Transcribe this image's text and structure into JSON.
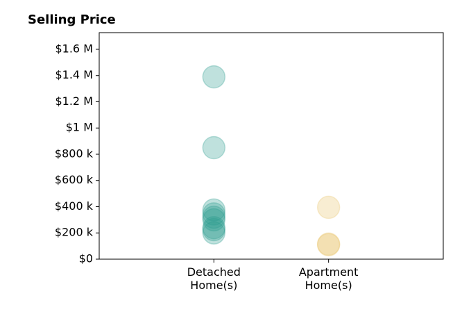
{
  "chart_data": {
    "type": "strip",
    "title": "Selling Price",
    "categories": [
      "Detached Home(s)",
      "Apartment Home(s)"
    ],
    "values": [
      [
        1390000,
        850000,
        375000,
        345000,
        320000,
        300000,
        240000,
        225000,
        200000
      ],
      [
        395000,
        115000,
        110000
      ]
    ],
    "colors": [
      "#2a9d8f",
      "#e9c46a"
    ],
    "ylim": [
      0,
      1727000
    ],
    "yticks": [
      {
        "value": 0,
        "label": "$0"
      },
      {
        "value": 200000,
        "label": "$200 k"
      },
      {
        "value": 400000,
        "label": "$400 k"
      },
      {
        "value": 600000,
        "label": "$600 k"
      },
      {
        "value": 800000,
        "label": "$800 k"
      },
      {
        "value": 1000000,
        "label": "$1 M"
      },
      {
        "value": 1200000,
        "label": "$1.2 M"
      },
      {
        "value": 1400000,
        "label": "$1.4 M"
      },
      {
        "value": 1600000,
        "label": "$1.6 M"
      }
    ],
    "grid": false
  }
}
